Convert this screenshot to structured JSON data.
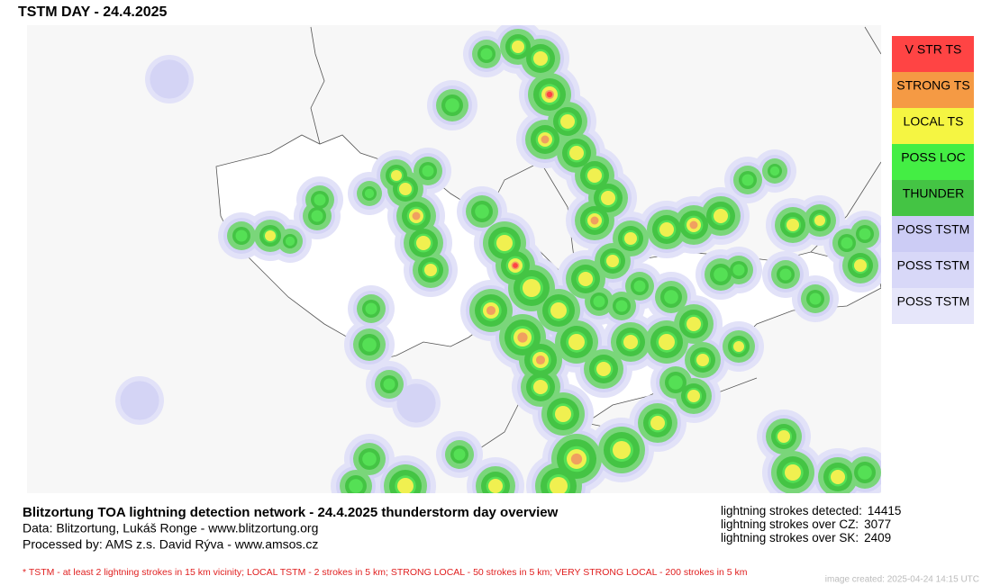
{
  "title": "TSTM DAY - 24.4.2025",
  "legend": [
    {
      "label": "V STR TS",
      "color": "#ff4444"
    },
    {
      "label": "STRONG TS",
      "color": "#f59a44"
    },
    {
      "label": "LOCAL TS",
      "color": "#f5f542"
    },
    {
      "label": "POSS LOC",
      "color": "#44ee44"
    },
    {
      "label": "THUNDER",
      "color": "#44c444"
    },
    {
      "label": "POSS TSTM",
      "color": "#ccccf5"
    },
    {
      "label": "POSS TSTM",
      "color": "#d8d8f8"
    },
    {
      "label": "POSS TSTM",
      "color": "#e6e6fa"
    }
  ],
  "footer": {
    "heading": "Blitzortung TOA lightning detection network - 24.4.2025  thunderstorm day overview",
    "data": "Data: Blitzortung, Lukáš Ronge - www.blitzortung.org",
    "processed": "Processed by: AMS z.s. David Rýva - www.amsos.cz",
    "note": "* TSTM - at least 2 lightning strokes in 15 km vicinity; LOCAL TSTM - 2 strokes in 5 km; STRONG LOCAL - 50 strokes in 5 km; VERY STRONG LOCAL - 200 strokes in 5 km",
    "created": "image created: 2025-04-24 14:15 UTC"
  },
  "stats": [
    {
      "label": "lightning strokes detected:",
      "value": 14415
    },
    {
      "label": "lightning strokes over CZ:",
      "value": 3077
    },
    {
      "label": "lightning strokes over SK:",
      "value": 2409
    }
  ]
}
